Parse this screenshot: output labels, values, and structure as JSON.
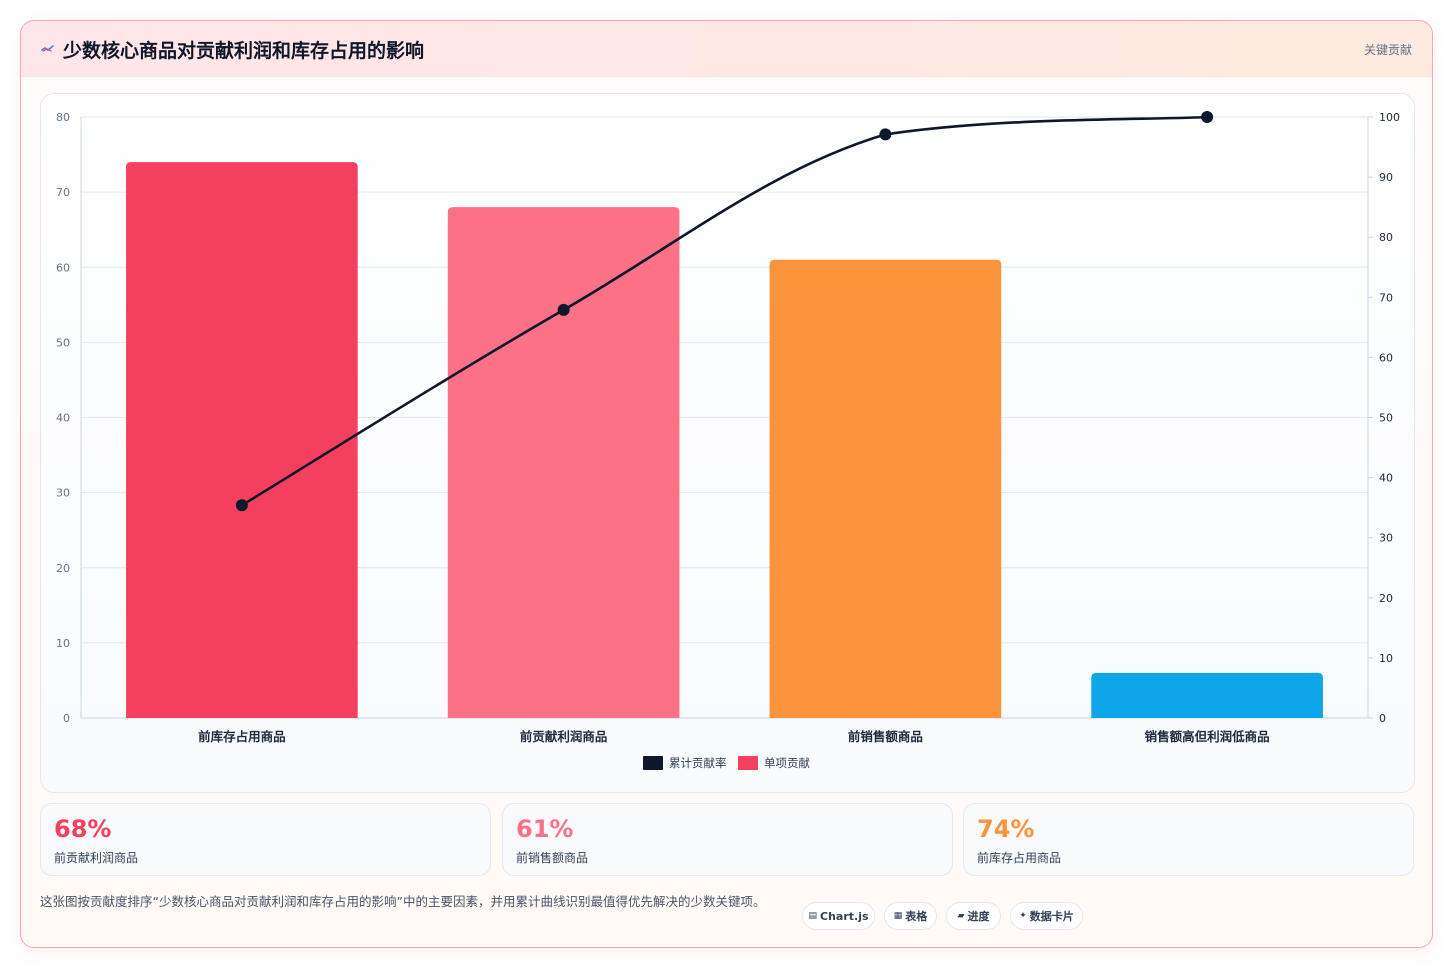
{
  "header": {
    "title": "少数核心商品对贡献利润和库存占用的影响",
    "badge": "关键贡献",
    "icon": "trend-icon"
  },
  "colors": {
    "bar_1": "#f43f5e",
    "bar_2": "#fb7185",
    "bar_3": "#fb923c",
    "bar_4": "#0ea5e9",
    "line": "#0f172a"
  },
  "chart_data": {
    "type": "bar",
    "categories": [
      "前库存占用商品",
      "前贡献利润商品",
      "前销售额商品",
      "销售额高但利润低商品"
    ],
    "series": [
      {
        "name": "单项贡献",
        "type": "bar",
        "axis": "left",
        "values": [
          74,
          68,
          61,
          6
        ]
      },
      {
        "name": "累计贡献率",
        "type": "line",
        "axis": "right",
        "values": [
          35.4,
          67.9,
          97.1,
          100
        ]
      }
    ],
    "ylim_left": [
      0,
      80
    ],
    "ylim_right": [
      0,
      100
    ],
    "yticks_left": [
      0,
      10,
      20,
      30,
      40,
      50,
      60,
      70,
      80
    ],
    "yticks_right": [
      0,
      10,
      20,
      30,
      40,
      50,
      60,
      70,
      80,
      90,
      100
    ],
    "grid": true,
    "legend_position": "bottom",
    "legend": [
      {
        "label": "累计贡献率",
        "color": "#0f172a"
      },
      {
        "label": "单项贡献",
        "color": "#f43f5e"
      }
    ]
  },
  "kpis": [
    {
      "value": "68%",
      "label": "前贡献利润商品",
      "color": "#f43f5e"
    },
    {
      "value": "61%",
      "label": "前销售额商品",
      "color": "#fb7185"
    },
    {
      "value": "74%",
      "label": "前库存占用商品",
      "color": "#fb923c"
    }
  ],
  "note": "这张图按贡献度排序“少数核心商品对贡献利润和库存占用的影响”中的主要因素，并用累计曲线识别最值得优先解决的少数关键项。",
  "pills": [
    {
      "icon": "chart-icon",
      "glyph": "▤",
      "label": "Chart.js"
    },
    {
      "icon": "table-icon",
      "glyph": "▦",
      "label": "表格"
    },
    {
      "icon": "progress-icon",
      "glyph": "▰",
      "label": "进度"
    },
    {
      "icon": "sparkle-icon",
      "glyph": "✦",
      "label": "数据卡片"
    }
  ]
}
